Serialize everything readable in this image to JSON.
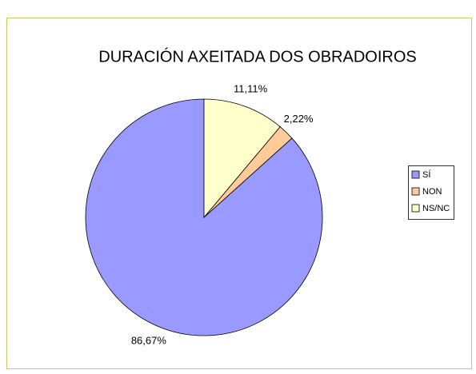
{
  "chart_data": {
    "type": "pie",
    "title": "DURACIÓN AXEITADA DOS OBRADOIROS",
    "categories": [
      "SÍ",
      "NON",
      "NS/NC"
    ],
    "values": [
      86.67,
      2.22,
      11.11
    ],
    "value_labels": [
      "86,67%",
      "2,22%",
      "11,11%"
    ],
    "colors": [
      "#9999ff",
      "#ffcc99",
      "#ffffcc"
    ],
    "legend": "right"
  }
}
